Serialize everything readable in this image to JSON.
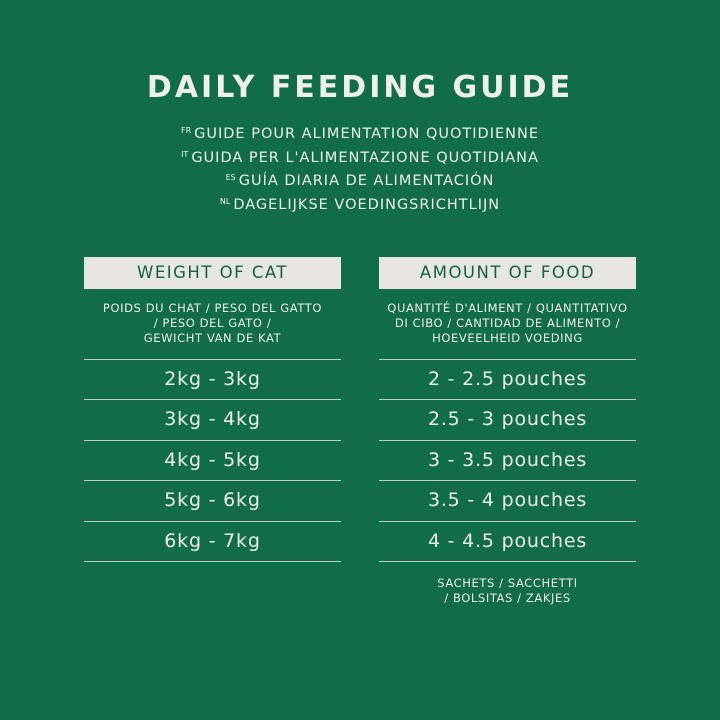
{
  "title": "DAILY FEEDING GUIDE",
  "translations": [
    {
      "lang": "FR",
      "text": "GUIDE POUR ALIMENTATION QUOTIDIENNE"
    },
    {
      "lang": "IT",
      "text": "GUIDA PER L'ALIMENTAZIONE QUOTIDIANA"
    },
    {
      "lang": "ES",
      "text": "GUÍA DIARIA DE ALIMENTACIÓN"
    },
    {
      "lang": "NL",
      "text": "DAGELIJKSE VOEDINGSRICHTLIJN"
    }
  ],
  "colors": {
    "background": "#116d46",
    "header_box": "#e8e6e0",
    "header_text": "#11643f"
  },
  "weight": {
    "header": "WEIGHT OF CAT",
    "desc": [
      "POIDS DU CHAT / PESO DEL GATTO",
      "/ PESO DEL GATO /",
      "GEWICHT VAN DE KAT"
    ],
    "rows": [
      "2kg - 3kg",
      "3kg - 4kg",
      "4kg - 5kg",
      "5kg - 6kg",
      "6kg - 7kg"
    ]
  },
  "food": {
    "header": "AMOUNT OF FOOD",
    "desc": [
      "QUANTITÉ D'ALIMENT / QUANTITATIVO",
      "DI CIBO / CANTIDAD DE ALIMENTO /",
      "HOEVEELHEID VOEDING"
    ],
    "rows": [
      "2 - 2.5 pouches",
      "2.5 - 3 pouches",
      "3 - 3.5 pouches",
      "3.5 - 4 pouches",
      "4 - 4.5 pouches"
    ],
    "footer": [
      "SACHETS / SACCHETTI",
      "/ BOLSITAS / ZAKJES"
    ]
  }
}
